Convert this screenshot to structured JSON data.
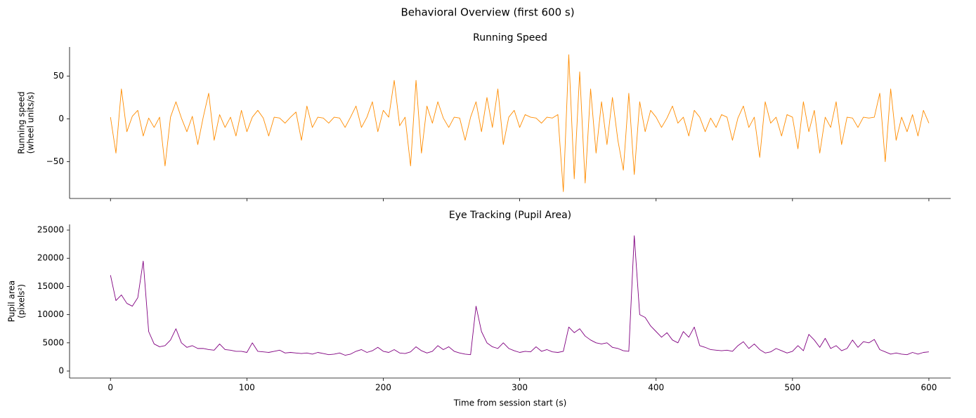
{
  "title": "Behavioral Overview (first 600 s)",
  "chart_data": [
    {
      "type": "line",
      "title": "Running Speed",
      "ylabel": [
        "Running speed",
        "(wheel units/s)"
      ],
      "color": "#ff8c00",
      "x": [
        0,
        4,
        8,
        12,
        16,
        20,
        24,
        28,
        32,
        36,
        40,
        44,
        48,
        52,
        56,
        60,
        64,
        68,
        72,
        76,
        80,
        84,
        88,
        92,
        96,
        100,
        104,
        108,
        112,
        116,
        120,
        124,
        128,
        132,
        136,
        140,
        144,
        148,
        152,
        156,
        160,
        164,
        168,
        172,
        176,
        180,
        184,
        188,
        192,
        196,
        200,
        204,
        208,
        212,
        216,
        220,
        224,
        228,
        232,
        236,
        240,
        244,
        248,
        252,
        256,
        260,
        264,
        268,
        272,
        276,
        280,
        284,
        288,
        292,
        296,
        300,
        304,
        308,
        312,
        316,
        320,
        324,
        328,
        332,
        336,
        340,
        344,
        348,
        352,
        356,
        360,
        364,
        368,
        372,
        376,
        380,
        384,
        388,
        392,
        396,
        400,
        404,
        408,
        412,
        416,
        420,
        424,
        428,
        432,
        436,
        440,
        444,
        448,
        452,
        456,
        460,
        464,
        468,
        472,
        476,
        480,
        484,
        488,
        492,
        496,
        500,
        504,
        508,
        512,
        516,
        520,
        524,
        528,
        532,
        536,
        540,
        544,
        548,
        552,
        556,
        560,
        564,
        568,
        572,
        576,
        580,
        584,
        588,
        592,
        596,
        600
      ],
      "values": [
        2,
        -40,
        35,
        -15,
        3,
        10,
        -20,
        1,
        -10,
        2,
        -55,
        2,
        20,
        1,
        -15,
        3,
        -30,
        2,
        30,
        -25,
        5,
        -10,
        2,
        -20,
        10,
        -15,
        2,
        10,
        1,
        -20,
        2,
        1,
        -5,
        2,
        8,
        -25,
        15,
        -10,
        2,
        1,
        -5,
        2,
        1,
        -10,
        2,
        15,
        -10,
        2,
        20,
        -15,
        10,
        2,
        45,
        -8,
        2,
        -55,
        45,
        -40,
        15,
        -5,
        20,
        1,
        -10,
        2,
        1,
        -25,
        2,
        20,
        -15,
        25,
        -10,
        35,
        -30,
        2,
        10,
        -10,
        5,
        2,
        1,
        -5,
        2,
        1,
        5,
        -85,
        75,
        -70,
        55,
        -75,
        35,
        -40,
        20,
        -30,
        25,
        -25,
        -60,
        30,
        -65,
        20,
        -15,
        10,
        2,
        -10,
        1,
        15,
        -5,
        2,
        -20,
        10,
        2,
        -15,
        1,
        -10,
        5,
        2,
        -25,
        1,
        15,
        -10,
        2,
        -45,
        20,
        -5,
        2,
        -20,
        5,
        2,
        -35,
        20,
        -15,
        10,
        -40,
        2,
        -10,
        20,
        -30,
        2,
        1,
        -10,
        2,
        1,
        2,
        30,
        -50,
        35,
        -25,
        2,
        -15,
        5,
        -20,
        10,
        -5
      ],
      "xlim": [
        -30,
        616
      ],
      "xticks": [
        0,
        100,
        200,
        300,
        400,
        500,
        600
      ],
      "ylim": [
        -93,
        84
      ],
      "yticks": [
        {
          "value": -50,
          "label": "−50"
        },
        0,
        50
      ]
    },
    {
      "type": "line",
      "title": "Eye Tracking (Pupil Area)",
      "ylabel": [
        "Pupil area",
        "(pixels²)"
      ],
      "xlabel": "Time from session start (s)",
      "color": "#800080",
      "x": [
        0,
        4,
        8,
        12,
        16,
        20,
        24,
        28,
        32,
        36,
        40,
        44,
        48,
        52,
        56,
        60,
        64,
        68,
        72,
        76,
        80,
        84,
        88,
        92,
        96,
        100,
        104,
        108,
        112,
        116,
        120,
        124,
        128,
        132,
        136,
        140,
        144,
        148,
        152,
        156,
        160,
        164,
        168,
        172,
        176,
        180,
        184,
        188,
        192,
        196,
        200,
        204,
        208,
        212,
        216,
        220,
        224,
        228,
        232,
        236,
        240,
        244,
        248,
        252,
        256,
        260,
        264,
        268,
        272,
        276,
        280,
        284,
        288,
        292,
        296,
        300,
        304,
        308,
        312,
        316,
        320,
        324,
        328,
        332,
        336,
        340,
        344,
        348,
        352,
        356,
        360,
        364,
        368,
        372,
        376,
        380,
        384,
        388,
        392,
        396,
        400,
        404,
        408,
        412,
        416,
        420,
        424,
        428,
        432,
        436,
        440,
        444,
        448,
        452,
        456,
        460,
        464,
        468,
        472,
        476,
        480,
        484,
        488,
        492,
        496,
        500,
        504,
        508,
        512,
        516,
        520,
        524,
        528,
        532,
        536,
        540,
        544,
        548,
        552,
        556,
        560,
        564,
        568,
        572,
        576,
        580,
        584,
        588,
        592,
        596,
        600
      ],
      "values": [
        17000,
        12500,
        13500,
        12000,
        11500,
        13000,
        19500,
        7000,
        4800,
        4300,
        4500,
        5500,
        7500,
        5000,
        4200,
        4500,
        4000,
        4000,
        3800,
        3700,
        4800,
        3800,
        3700,
        3500,
        3500,
        3300,
        5000,
        3500,
        3400,
        3300,
        3500,
        3700,
        3200,
        3300,
        3200,
        3100,
        3200,
        3000,
        3300,
        3100,
        2900,
        3000,
        3200,
        2800,
        3000,
        3500,
        3800,
        3300,
        3600,
        4200,
        3500,
        3300,
        3800,
        3200,
        3100,
        3400,
        4300,
        3600,
        3200,
        3500,
        4500,
        3800,
        4300,
        3500,
        3200,
        3000,
        2900,
        11500,
        7000,
        5000,
        4300,
        4000,
        5000,
        4000,
        3600,
        3300,
        3500,
        3400,
        4300,
        3500,
        3800,
        3400,
        3300,
        3500,
        7800,
        6800,
        7500,
        6200,
        5500,
        5000,
        4800,
        5000,
        4200,
        4000,
        3600,
        3500,
        24000,
        10000,
        9500,
        8000,
        7000,
        6000,
        6800,
        5500,
        5000,
        7000,
        6000,
        7800,
        4500,
        4200,
        3800,
        3700,
        3600,
        3700,
        3500,
        4500,
        5200,
        4000,
        4800,
        3800,
        3200,
        3400,
        4000,
        3600,
        3200,
        3500,
        4500,
        3600,
        6500,
        5500,
        4200,
        5800,
        4000,
        4500,
        3600,
        4000,
        5500,
        4200,
        5200,
        5000,
        5600,
        3800,
        3400,
        3000,
        3200,
        3000,
        2900,
        3300,
        3000,
        3300,
        3400
      ],
      "xlim": [
        -30,
        616
      ],
      "xticks": [
        0,
        100,
        200,
        300,
        400,
        500,
        600
      ],
      "ylim": [
        -1240,
        26000
      ],
      "yticks": [
        0,
        5000,
        10000,
        15000,
        20000,
        25000
      ]
    }
  ]
}
